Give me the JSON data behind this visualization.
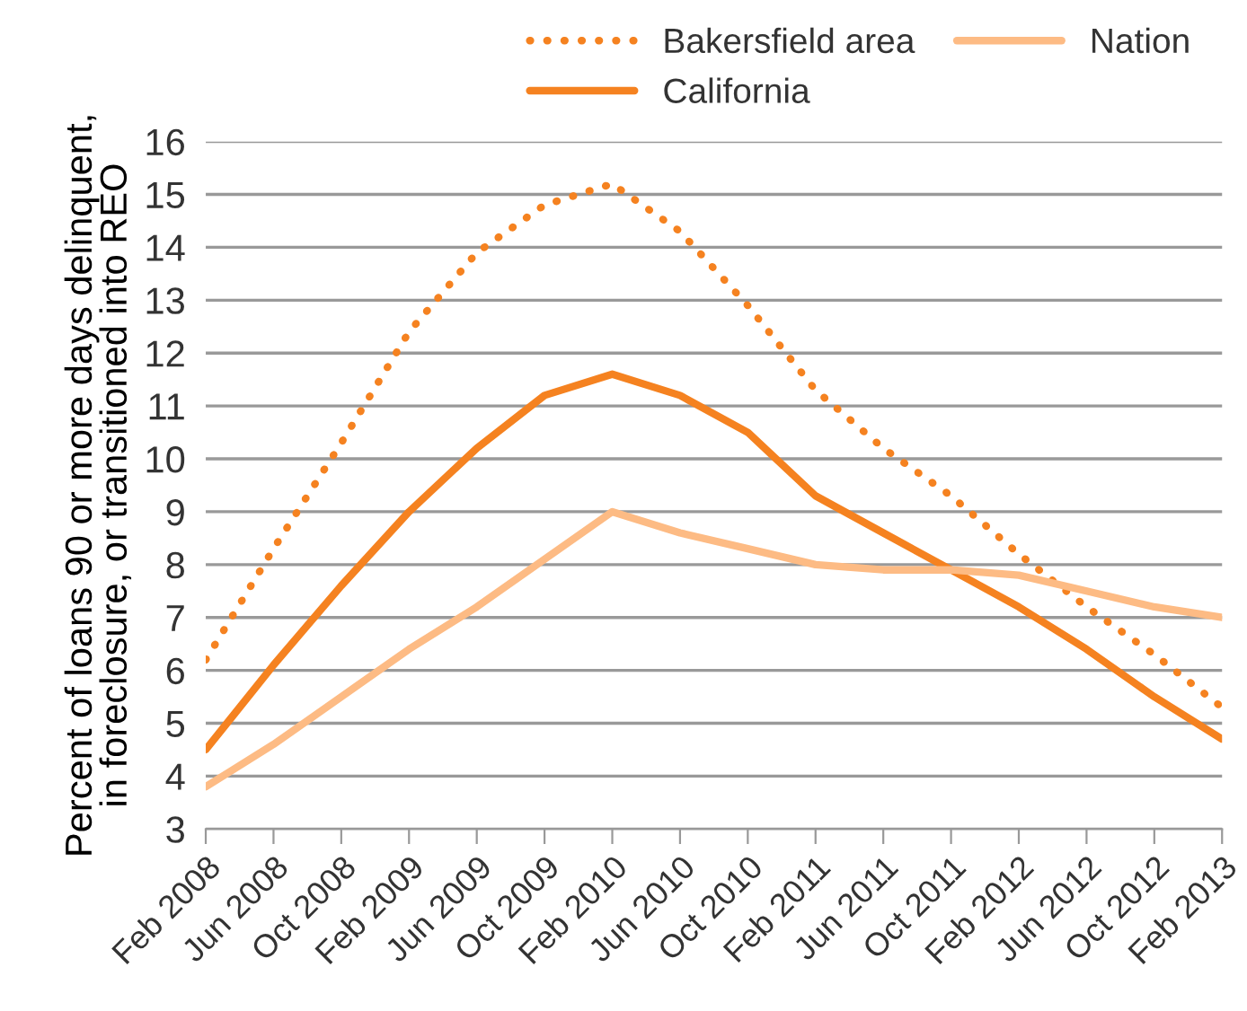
{
  "chart_data": {
    "type": "line",
    "ylabel": "Percent of loans 90 or more days delinquent,\nin foreclosure, or transitioned into REO",
    "categories": [
      "Feb 2008",
      "Jun 2008",
      "Oct 2008",
      "Feb 2009",
      "Jun 2009",
      "Oct 2009",
      "Feb 2010",
      "Jun 2010",
      "Oct 2010",
      "Feb 2011",
      "Jun 2011",
      "Oct 2011",
      "Feb 2012",
      "Jun 2012",
      "Oct 2012",
      "Feb 2013"
    ],
    "series": [
      {
        "name": "Bakersfield area",
        "color": "#f58220",
        "line_style": "dotted",
        "values": [
          6.2,
          8.3,
          10.3,
          12.4,
          13.9,
          14.8,
          15.2,
          14.3,
          12.9,
          11.3,
          10.2,
          9.3,
          8.2,
          7.2,
          6.3,
          5.3
        ]
      },
      {
        "name": "California",
        "color": "#f58220",
        "line_style": "solid",
        "values": [
          4.5,
          6.1,
          7.6,
          9.0,
          10.2,
          11.2,
          11.6,
          11.2,
          10.5,
          9.3,
          8.6,
          7.9,
          7.2,
          6.4,
          5.5,
          4.7
        ]
      },
      {
        "name": "Nation",
        "color": "#fdbb84",
        "line_style": "solid",
        "values": [
          3.8,
          4.6,
          5.5,
          6.4,
          7.2,
          8.1,
          9.0,
          8.6,
          8.3,
          8.0,
          7.9,
          7.9,
          7.8,
          7.5,
          7.2,
          7.0
        ]
      }
    ],
    "ylim": [
      3,
      16
    ],
    "yticks": [
      3,
      4,
      5,
      6,
      7,
      8,
      9,
      10,
      11,
      12,
      13,
      14,
      15,
      16
    ],
    "grid": "y",
    "legend": "top right",
    "marker": "none"
  }
}
